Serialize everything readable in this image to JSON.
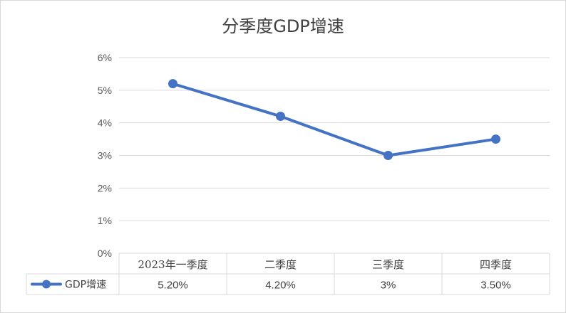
{
  "chart_data": {
    "type": "line",
    "title": "分季度GDP增速",
    "categories": [
      "2023年一季度",
      "二季度",
      "三季度",
      "四季度"
    ],
    "series": [
      {
        "name": "GDP增速",
        "values": [
          5.2,
          4.2,
          3.0,
          3.5
        ],
        "table_labels": [
          "5.20%",
          "4.20%",
          "3%",
          "3.50%"
        ]
      }
    ],
    "y_ticks": [
      "0%",
      "1%",
      "2%",
      "3%",
      "4%",
      "5%",
      "6%"
    ],
    "ylim": [
      0,
      6
    ],
    "grid": true,
    "legend": "data-table",
    "colors": {
      "line": "#4472c4",
      "grid": "#d9d9d9",
      "text": "#595959"
    }
  }
}
